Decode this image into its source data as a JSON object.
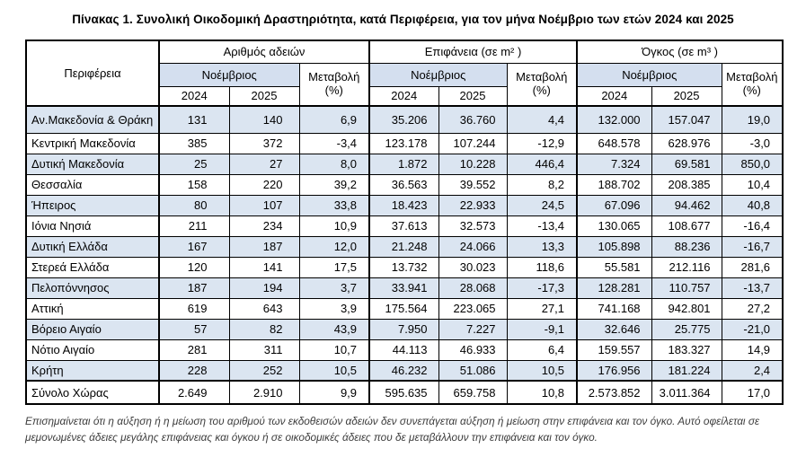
{
  "title": "Πίνακας 1. Συνολική Οικοδομική Δραστηριότητα, κατά  Περιφέρεια, για τον μήνα Νοέμβριο των ετών 2024 και 2025",
  "colors": {
    "stripe": "#dbe5f1",
    "header_band": "#d4dfef",
    "border": "#000000"
  },
  "chart_data": {
    "type": "table",
    "title": "Πίνακας 1. Συνολική Οικοδομική Δραστηριότητα, κατά Περιφέρεια, για τον μήνα Νοέμβριο των ετών 2024 και 2025",
    "column_groups": [
      "Αριθμός αδειών",
      "Επιφάνεια (σε m² )",
      "Όγκος (σε m³ )"
    ],
    "columns": [
      "Περιφέρεια",
      "Άδειες 2024",
      "Άδειες 2025",
      "Μεταβολή (%)",
      "Επιφάνεια 2024",
      "Επιφάνεια 2025",
      "Μεταβολή (%)",
      "Όγκος 2024",
      "Όγκος 2025",
      "Μεταβολή (%)"
    ]
  },
  "table": {
    "region_header": "Περιφέρεια",
    "month": "Νοέμβριος",
    "change_label": "Μεταβολή",
    "change_unit": "(%)",
    "year_2024": "2024",
    "year_2025": "2025",
    "groups": [
      {
        "label": "Αριθμός αδειών"
      },
      {
        "label": "Επιφάνεια (σε m² )"
      },
      {
        "label": "Όγκος (σε m³ )"
      }
    ],
    "rows": [
      {
        "region": "Αν.Μακεδονία & Θράκη",
        "values": [
          "131",
          "140",
          "6,9",
          "35.206",
          "36.760",
          "4,4",
          "132.000",
          "157.047",
          "19,0"
        ]
      },
      {
        "region": "Κεντρική Μακεδονία",
        "values": [
          "385",
          "372",
          "-3,4",
          "123.178",
          "107.244",
          "-12,9",
          "648.578",
          "628.976",
          "-3,0"
        ]
      },
      {
        "region": "Δυτική Μακεδονία",
        "values": [
          "25",
          "27",
          "8,0",
          "1.872",
          "10.228",
          "446,4",
          "7.324",
          "69.581",
          "850,0"
        ]
      },
      {
        "region": "Θεσσαλία",
        "values": [
          "158",
          "220",
          "39,2",
          "36.563",
          "39.552",
          "8,2",
          "188.702",
          "208.385",
          "10,4"
        ]
      },
      {
        "region": "Ήπειρος",
        "values": [
          "80",
          "107",
          "33,8",
          "18.423",
          "22.933",
          "24,5",
          "67.096",
          "94.462",
          "40,8"
        ]
      },
      {
        "region": "Ιόνια Νησιά",
        "values": [
          "211",
          "234",
          "10,9",
          "37.613",
          "32.573",
          "-13,4",
          "130.065",
          "108.677",
          "-16,4"
        ]
      },
      {
        "region": "Δυτική Ελλάδα",
        "values": [
          "167",
          "187",
          "12,0",
          "21.248",
          "24.066",
          "13,3",
          "105.898",
          "88.236",
          "-16,7"
        ]
      },
      {
        "region": "Στερεά Ελλάδα",
        "values": [
          "120",
          "141",
          "17,5",
          "13.732",
          "30.023",
          "118,6",
          "55.581",
          "212.116",
          "281,6"
        ]
      },
      {
        "region": "Πελοπόννησος",
        "values": [
          "187",
          "194",
          "3,7",
          "33.941",
          "28.068",
          "-17,3",
          "128.281",
          "110.757",
          "-13,7"
        ]
      },
      {
        "region": "Αττική",
        "values": [
          "619",
          "643",
          "3,9",
          "175.564",
          "223.065",
          "27,1",
          "741.168",
          "942.801",
          "27,2"
        ]
      },
      {
        "region": "Βόρειο Αιγαίο",
        "values": [
          "57",
          "82",
          "43,9",
          "7.950",
          "7.227",
          "-9,1",
          "32.646",
          "25.775",
          "-21,0"
        ]
      },
      {
        "region": "Νότιο Αιγαίο",
        "values": [
          "281",
          "311",
          "10,7",
          "44.113",
          "46.933",
          "6,4",
          "159.557",
          "183.327",
          "14,9"
        ]
      },
      {
        "region": "Κρήτη",
        "values": [
          "228",
          "252",
          "10,5",
          "46.232",
          "51.086",
          "10,5",
          "176.956",
          "181.224",
          "2,4"
        ]
      }
    ],
    "total": {
      "region": "Σύνολο Χώρας",
      "values": [
        "2.649",
        "2.910",
        "9,9",
        "595.635",
        "659.758",
        "10,8",
        "2.573.852",
        "3.011.364",
        "17,0"
      ]
    }
  },
  "footnote": "Επισημαίνεται ότι η αύξηση ή η μείωση του αριθμού των εκδοθεισών αδειών δεν συνεπάγεται αύξηση ή μείωση στην επιφάνεια και τον όγκο. Αυτό οφείλεται σε μεμονωμένες άδειες μεγάλης επιφάνειας και όγκου ή σε οικοδομικές άδειες που δε μεταβάλλουν την επιφάνεια και τον όγκο."
}
